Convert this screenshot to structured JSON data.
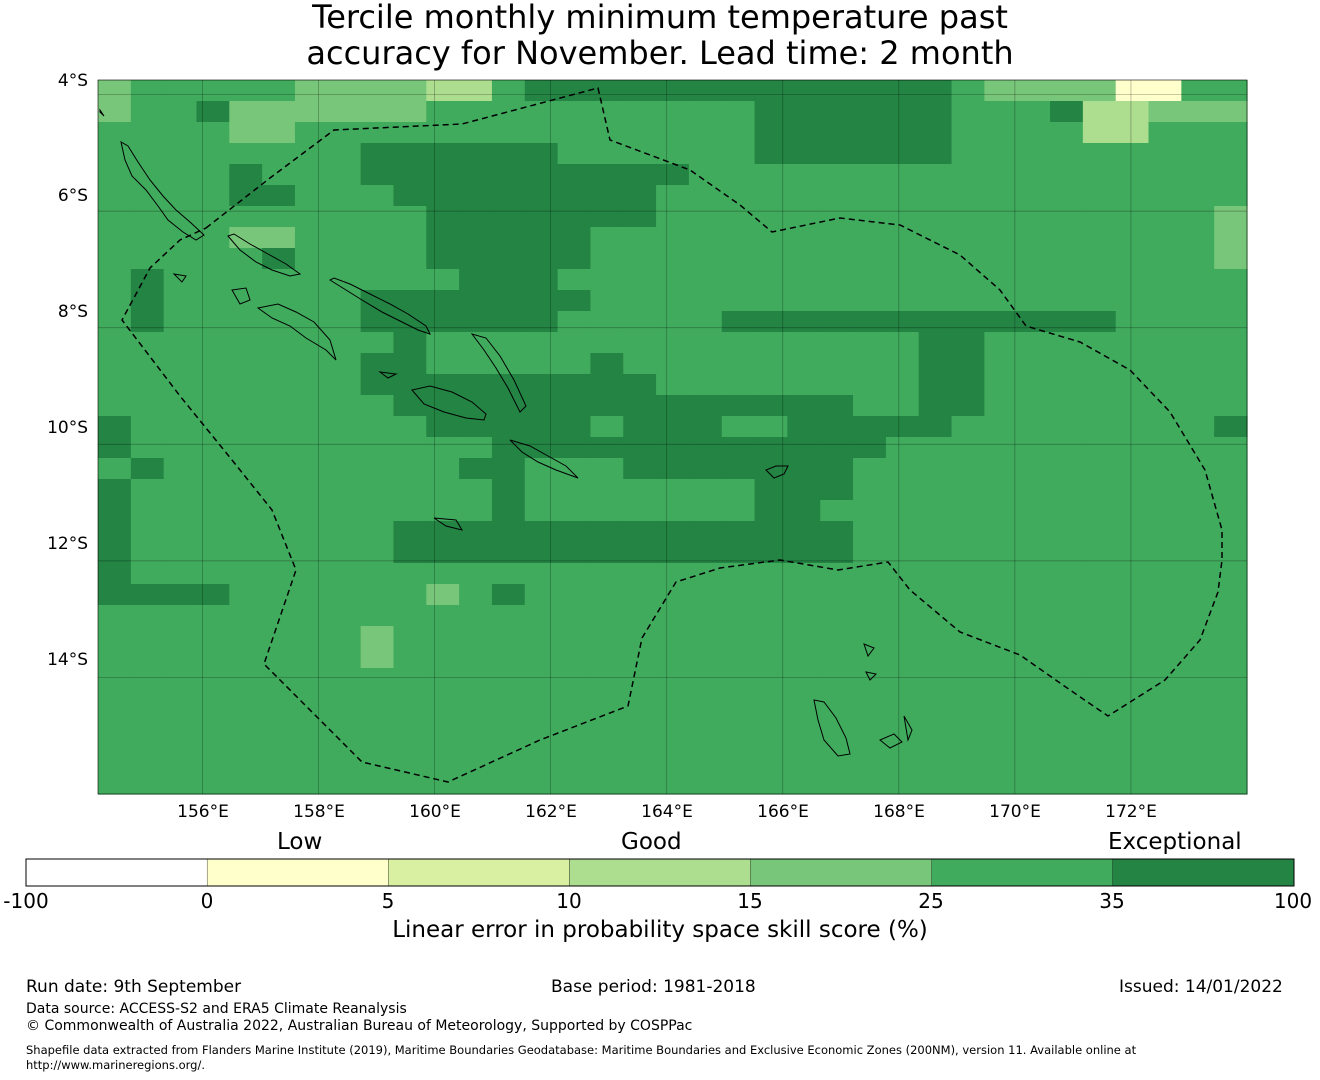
{
  "title": {
    "line1": "Tercile monthly minimum temperature past",
    "line2": "accuracy for November. Lead time: 2 month"
  },
  "map": {
    "lat_ticks": [
      "4°S",
      "6°S",
      "8°S",
      "10°S",
      "12°S",
      "14°S"
    ],
    "lon_ticks": [
      "156°E",
      "158°E",
      "160°E",
      "162°E",
      "164°E",
      "166°E",
      "168°E",
      "170°E",
      "172°E"
    ],
    "lon_range": [
      154.2,
      174.0
    ],
    "lat_range": [
      -16.0,
      -3.75
    ],
    "grid_lines": true,
    "eez_boundary": "dashed",
    "skill_classes": "0=white(-100..0) 1=#ffffcc(0..5) 2=#d9f0a3(5..10) 3=#addd8e(10..15) 4=#78c679(15..25) 5=#41ab5d(25..35) 6=#238443(35..100)",
    "skill_grid": [
      "45555544443356666666666666544441155",
      "45564444445555555555666666555633444",
      "55554455555555555555666666555533555",
      "55555555666666555555666666555555555",
      "55556555666666666655555555555555555",
      "55556655566666666555555555555555555",
      "55555555556666666555555555555555554",
      "55554455556666655555555555555555554",
      "55555655556666655555555555555555554",
      "56555555555666555555555555555555555",
      "56555555666666655555555555555555555",
      "56555555666666555556666666666665555",
      "55555555565555555555555556655555555",
      "55555555665555565555555556655555555",
      "55555555666666666555555556655555555",
      "55555555566666666666666556655555555",
      "65555555556666656665566666555555556",
      "65555555555566666666666655555555555",
      "56555555555665556666666555555555555",
      "65555555555565555555666555555555555",
      "65555555555565555555665555555555555",
      "65555555566666666666666555555555555",
      "65555555566666666666666555555555555",
      "65555555555555555555555555555555555",
      "66665555554565555555555555555555555",
      "55555555555555555555555555555555555",
      "55555555455555555555555555555555555",
      "55555555455555555555555555555555555",
      "55555555555555555555555555555555555",
      "55555555555555555555555555555555555",
      "55555555555555555555555555555555555",
      "55555555555555555555555555555555555",
      "55555555555555555555555555555555555",
      "55555555555555555555555555555555555"
    ]
  },
  "colorbar": {
    "categories": [
      "Low",
      "Good",
      "Exceptional"
    ],
    "ticks": [
      "-100",
      "0",
      "5",
      "10",
      "15",
      "25",
      "35",
      "100"
    ],
    "colors": [
      "#ffffff",
      "#ffffcc",
      "#d9f0a3",
      "#addd8e",
      "#78c679",
      "#41ab5d",
      "#238443"
    ],
    "label": "Linear error in probability space skill score (%)"
  },
  "footer": {
    "run_date": "Run date: 9th September",
    "base_period": "Base period: 1981-2018",
    "issued": "Issued: 14/01/2022",
    "data_source": "Data source: ACCESS-S2 and ERA5 Climate Reanalysis",
    "copyright": "© Commonwealth of Australia 2022, Australian Bureau of Meteorology, Supported by COSPPac",
    "shapefile": "Shapefile data extracted from Flanders Marine Institute (2019), Maritime Boundaries Geodatabase: Maritime Boundaries and Exclusive Economic Zones (200NM), version 11. Available online at http://www.marineregions.org/."
  }
}
